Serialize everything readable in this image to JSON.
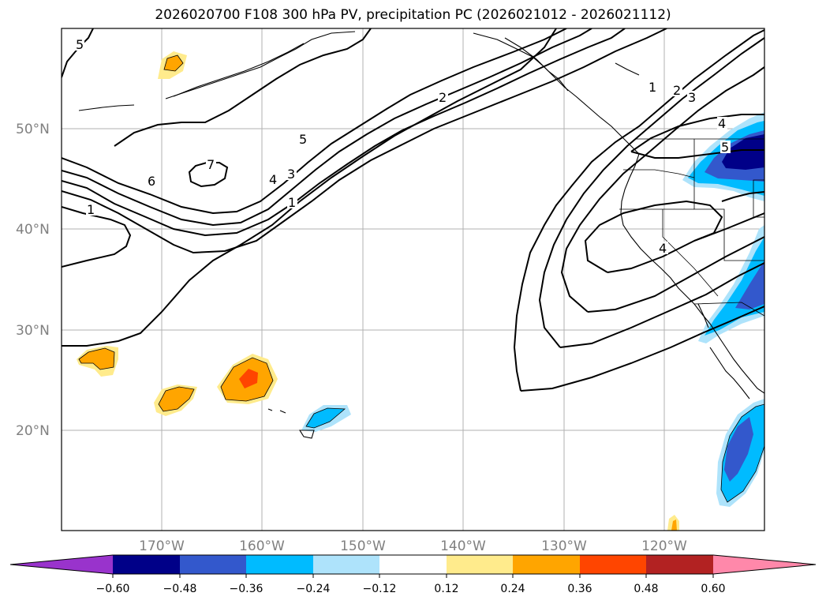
{
  "title": "2026020700 F108 300 hPa PV, precipitation PC (2026021012 - 2026021112)",
  "map": {
    "lat_labels": [
      "50°N",
      "40°N",
      "30°N",
      "20°N"
    ],
    "lon_labels": [
      "170°W",
      "160°W",
      "150°W",
      "140°W",
      "130°W",
      "120°W"
    ],
    "contour_labels": [
      "5",
      "6",
      "7",
      "1",
      "5",
      "4",
      "3",
      "1",
      "2",
      "1",
      "2",
      "3",
      "4",
      "5",
      "4"
    ]
  },
  "colorbar": {
    "ticks": [
      "−0.60",
      "−0.48",
      "−0.36",
      "−0.24",
      "−0.12",
      "0.12",
      "0.24",
      "0.36",
      "0.48",
      "0.60"
    ],
    "colors": [
      "#9933cc",
      "#000088",
      "#3358cc",
      "#00bbff",
      "#aee3fb",
      "#ffffff",
      "#ffeb8c",
      "#ffa500",
      "#ff4500",
      "#b22222",
      "#ff88aa"
    ]
  }
}
